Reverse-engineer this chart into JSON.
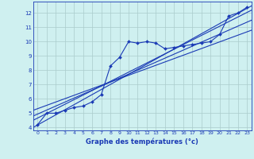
{
  "bg_color": "#cff0f0",
  "grid_color": "#aacccc",
  "line_color": "#1a3ab5",
  "xlim": [
    -0.5,
    23.5
  ],
  "ylim": [
    3.8,
    12.8
  ],
  "xticks": [
    0,
    1,
    2,
    3,
    4,
    5,
    6,
    7,
    8,
    9,
    10,
    11,
    12,
    13,
    14,
    15,
    16,
    17,
    18,
    19,
    20,
    21,
    22,
    23
  ],
  "yticks": [
    4,
    5,
    6,
    7,
    8,
    9,
    10,
    11,
    12
  ],
  "xlabel": "Graphe des températures (°c)",
  "measured_x": [
    0,
    1,
    2,
    3,
    4,
    5,
    6,
    7,
    8,
    9,
    10,
    11,
    12,
    13,
    14,
    15,
    16,
    17,
    18,
    19,
    20,
    21,
    22,
    23
  ],
  "measured_y": [
    4.2,
    5.0,
    5.0,
    5.2,
    5.4,
    5.5,
    5.8,
    6.3,
    8.3,
    8.9,
    10.0,
    9.9,
    10.0,
    9.9,
    9.5,
    9.6,
    9.7,
    9.8,
    9.9,
    10.0,
    10.5,
    11.8,
    12.0,
    12.4
  ],
  "trend_lines": [
    [
      4.0,
      12.5
    ],
    [
      4.5,
      12.2
    ],
    [
      4.8,
      11.5
    ],
    [
      5.2,
      10.8
    ]
  ]
}
